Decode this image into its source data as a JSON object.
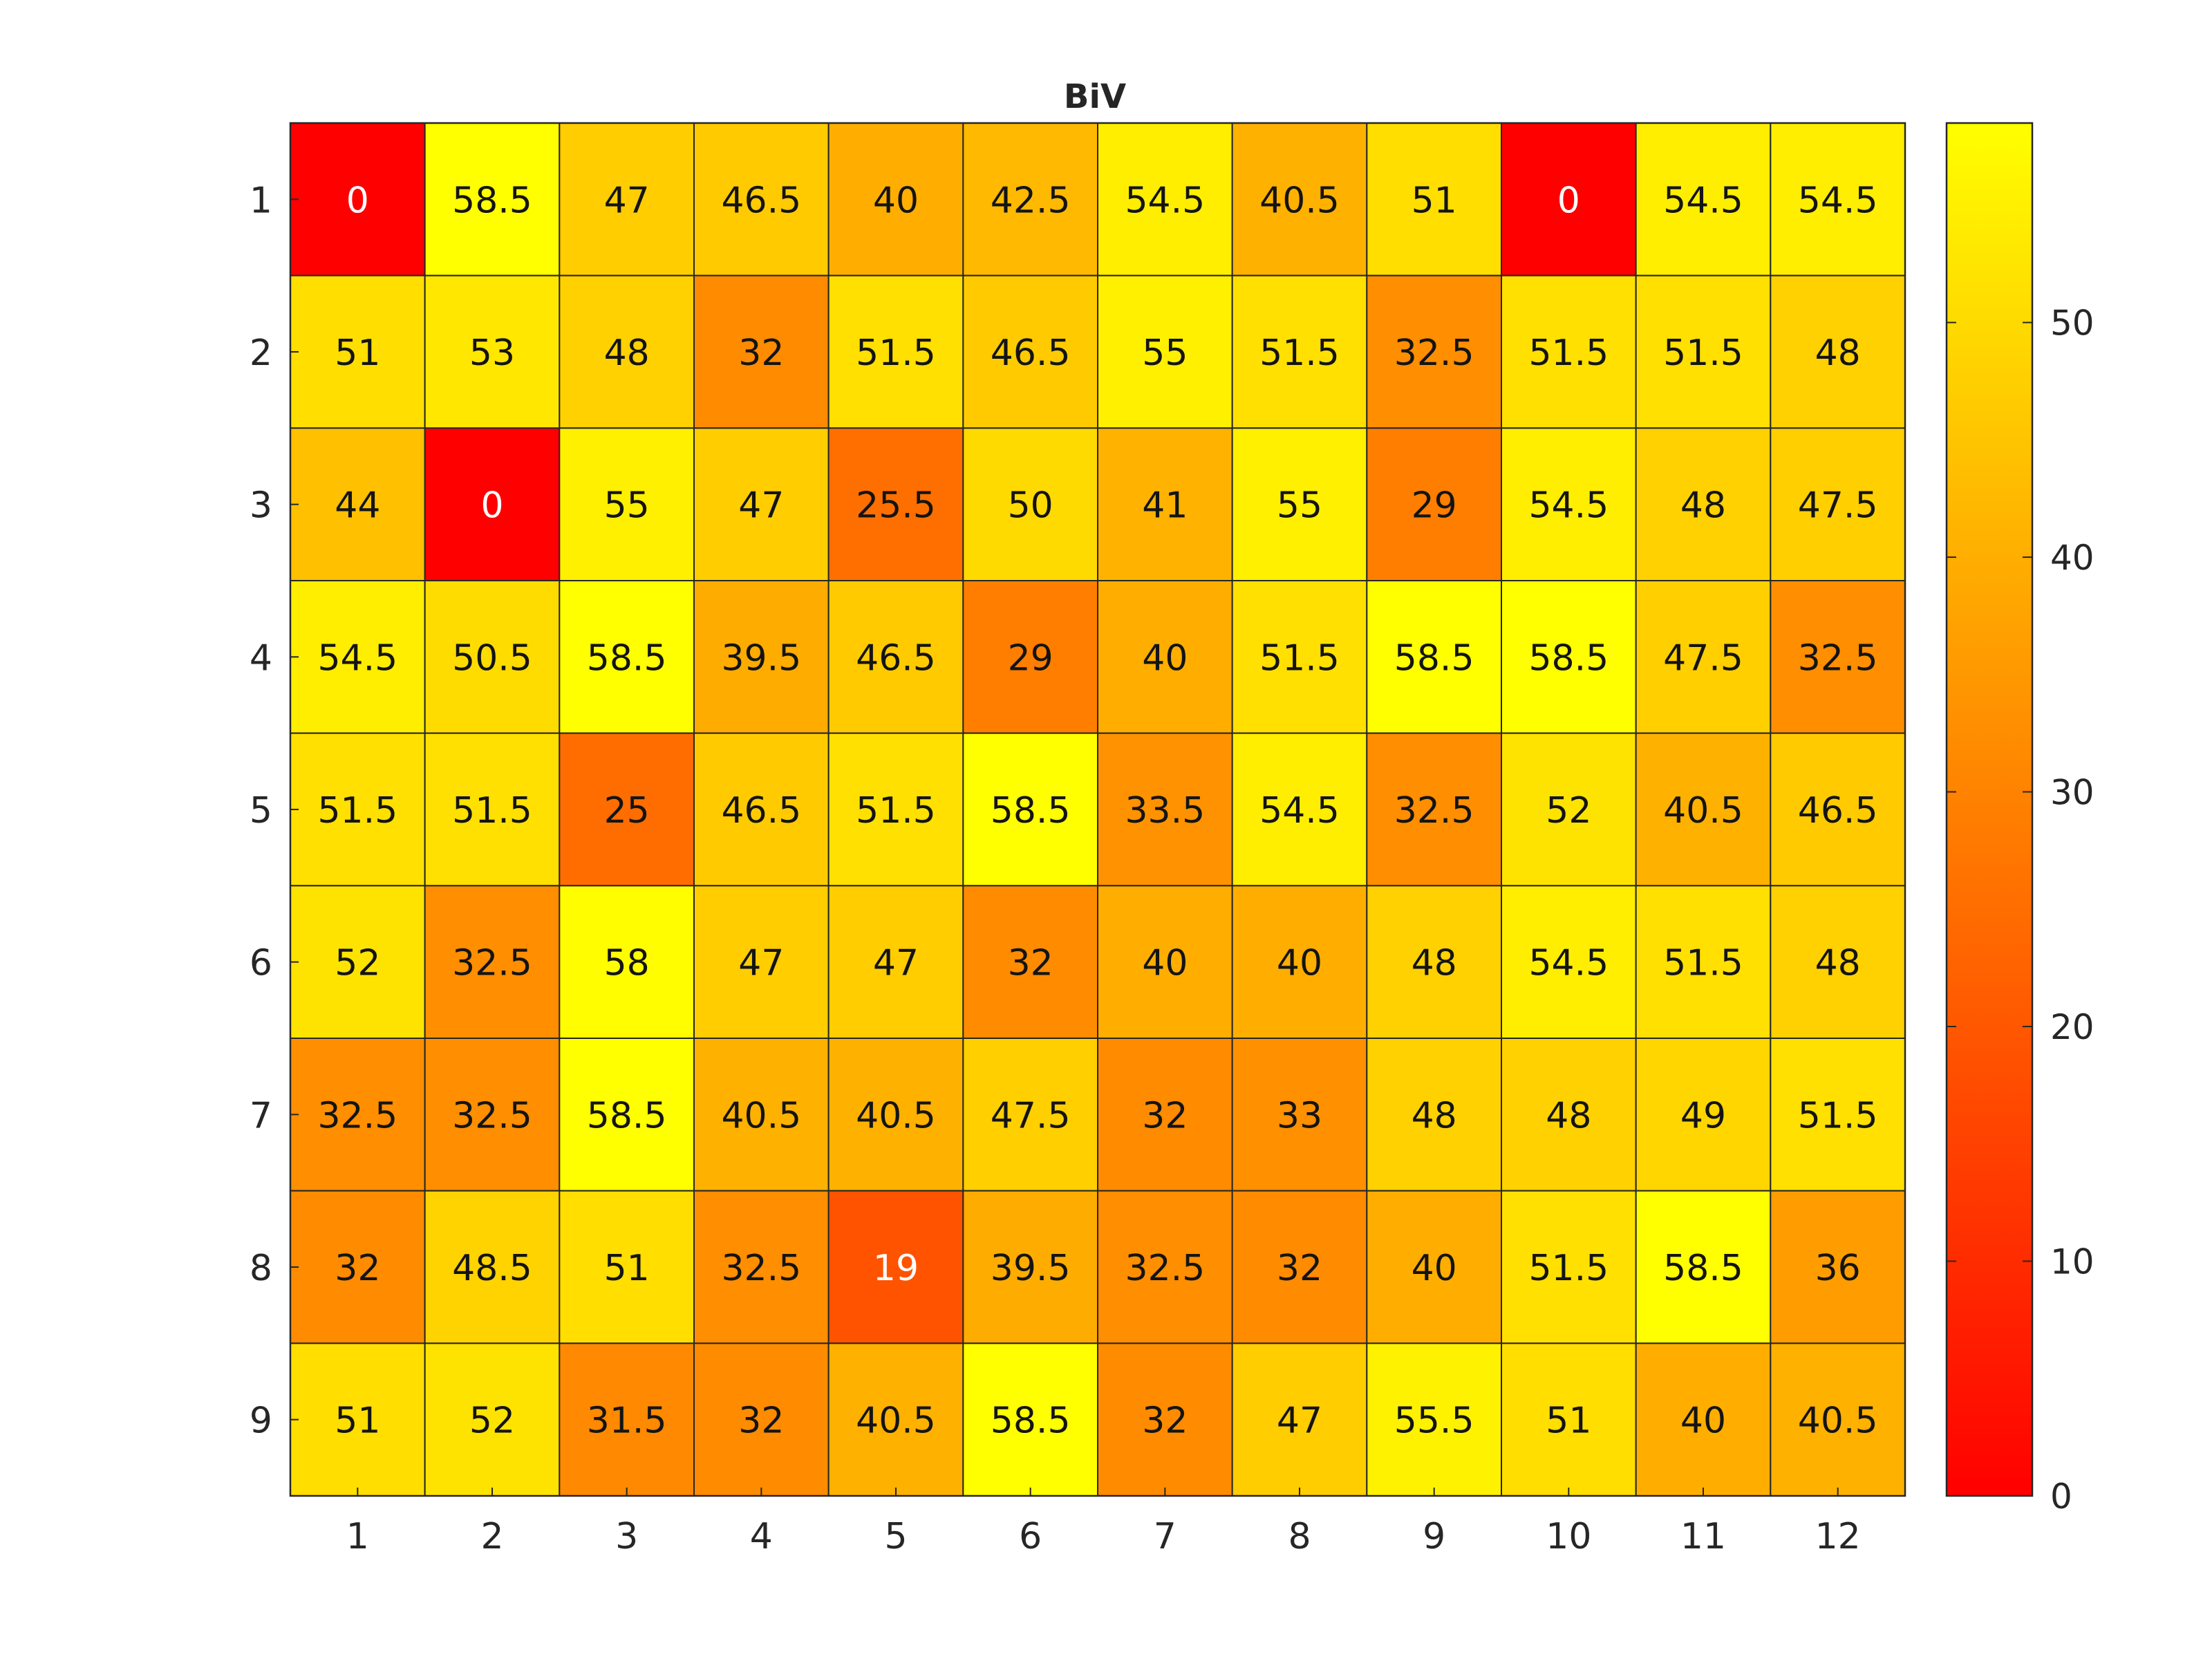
{
  "chart_data": {
    "type": "heatmap",
    "title": "BiV",
    "xlabel": "",
    "ylabel": "",
    "x_categories": [
      "1",
      "2",
      "3",
      "4",
      "5",
      "6",
      "7",
      "8",
      "9",
      "10",
      "11",
      "12"
    ],
    "y_categories": [
      "1",
      "2",
      "3",
      "4",
      "5",
      "6",
      "7",
      "8",
      "9"
    ],
    "values": [
      [
        0,
        58.5,
        47,
        46.5,
        40,
        42.5,
        54.5,
        40.5,
        51,
        0,
        54.5,
        54.5
      ],
      [
        51,
        53,
        48,
        32,
        51.5,
        46.5,
        55,
        51.5,
        32.5,
        51.5,
        51.5,
        48
      ],
      [
        44,
        0,
        55,
        47,
        25.5,
        50,
        41,
        55,
        29,
        54.5,
        48,
        47.5
      ],
      [
        54.5,
        50.5,
        58.5,
        39.5,
        46.5,
        29,
        40,
        51.5,
        58.5,
        58.5,
        47.5,
        32.5
      ],
      [
        51.5,
        51.5,
        25,
        46.5,
        51.5,
        58.5,
        33.5,
        54.5,
        32.5,
        52,
        40.5,
        46.5
      ],
      [
        52,
        32.5,
        58,
        47,
        47,
        32,
        40,
        40,
        48,
        54.5,
        51.5,
        48
      ],
      [
        32.5,
        32.5,
        58.5,
        40.5,
        40.5,
        47.5,
        32,
        33,
        48,
        48,
        49,
        51.5
      ],
      [
        32,
        48.5,
        51,
        32.5,
        19,
        39.5,
        32.5,
        32,
        40,
        51.5,
        58.5,
        36
      ],
      [
        51,
        52,
        31.5,
        32,
        40.5,
        58.5,
        32,
        47,
        55.5,
        51,
        40,
        40.5
      ]
    ],
    "colormap": "autumn",
    "color_range": [
      0,
      58.5
    ],
    "colorbar_ticks": [
      "0",
      "10",
      "20",
      "30",
      "40",
      "50"
    ],
    "grid": true,
    "legend": "colorbar-right"
  }
}
